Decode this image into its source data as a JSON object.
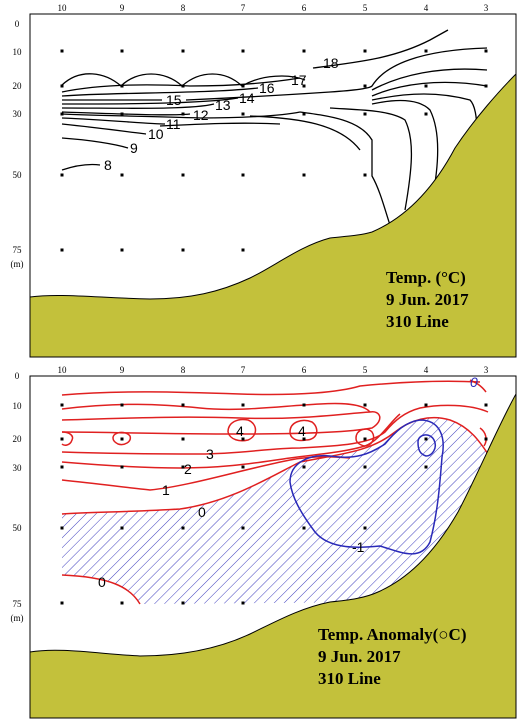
{
  "chart_data": [
    {
      "type": "contour",
      "title_lines": [
        "Temp. (°C)",
        "9 Jun. 2017",
        "310 Line"
      ],
      "depth_unit": "(m)",
      "stations": [
        "10",
        "9",
        "8",
        "7",
        "6",
        "5",
        "4",
        "3"
      ],
      "depth_ticks": [
        "0",
        "10",
        "20",
        "30",
        "50",
        "75"
      ],
      "contour_labels": [
        "18",
        "17",
        "16",
        "15",
        "14",
        "13",
        "12",
        "11",
        "10",
        "9",
        "8"
      ],
      "colors": {
        "contour": "#000000",
        "bottom_fill": "#c3c13b"
      }
    },
    {
      "type": "contour",
      "title_lines": [
        "Temp. Anomaly(○C)",
        "9 Jun. 2017",
        "310 Line"
      ],
      "depth_unit": "(m)",
      "stations": [
        "10",
        "9",
        "8",
        "7",
        "6",
        "5",
        "4",
        "3"
      ],
      "depth_ticks": [
        "0",
        "10",
        "20",
        "30",
        "50",
        "75"
      ],
      "contour_labels": [
        "4",
        "4",
        "3",
        "2",
        "1",
        "0",
        "0",
        "-1",
        "0"
      ],
      "colors": {
        "positive": "#e02020",
        "negative": "#2a2ab8",
        "bottom_fill": "#c3c13b"
      }
    }
  ]
}
